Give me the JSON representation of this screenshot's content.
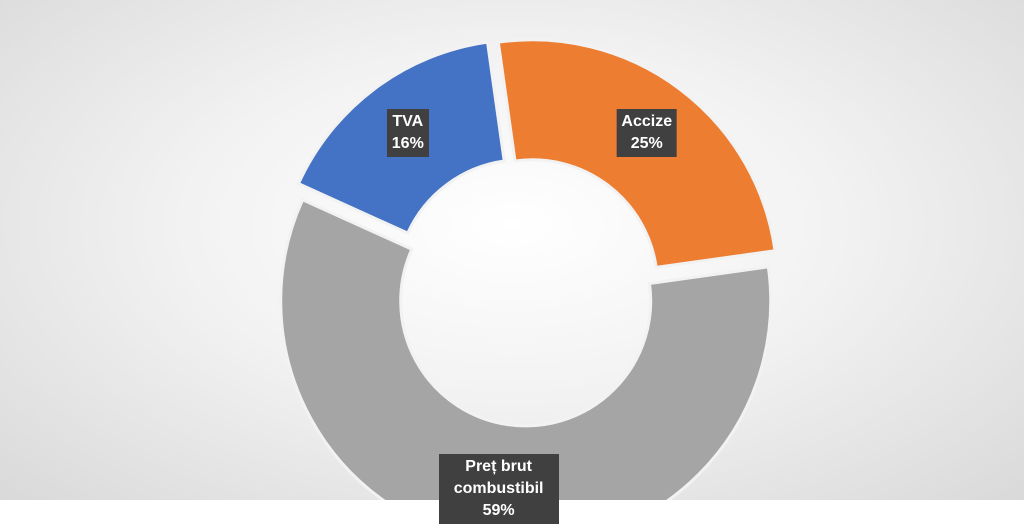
{
  "chart_data": {
    "type": "donut",
    "categories": [
      "TVA",
      "Accize",
      "Preț brut combustibil"
    ],
    "values": [
      16,
      25,
      59
    ],
    "value_labels": [
      "16%",
      "25%",
      "59%"
    ],
    "colors": [
      "#4472c4",
      "#ed7d31",
      "#a5a5a5"
    ]
  }
}
